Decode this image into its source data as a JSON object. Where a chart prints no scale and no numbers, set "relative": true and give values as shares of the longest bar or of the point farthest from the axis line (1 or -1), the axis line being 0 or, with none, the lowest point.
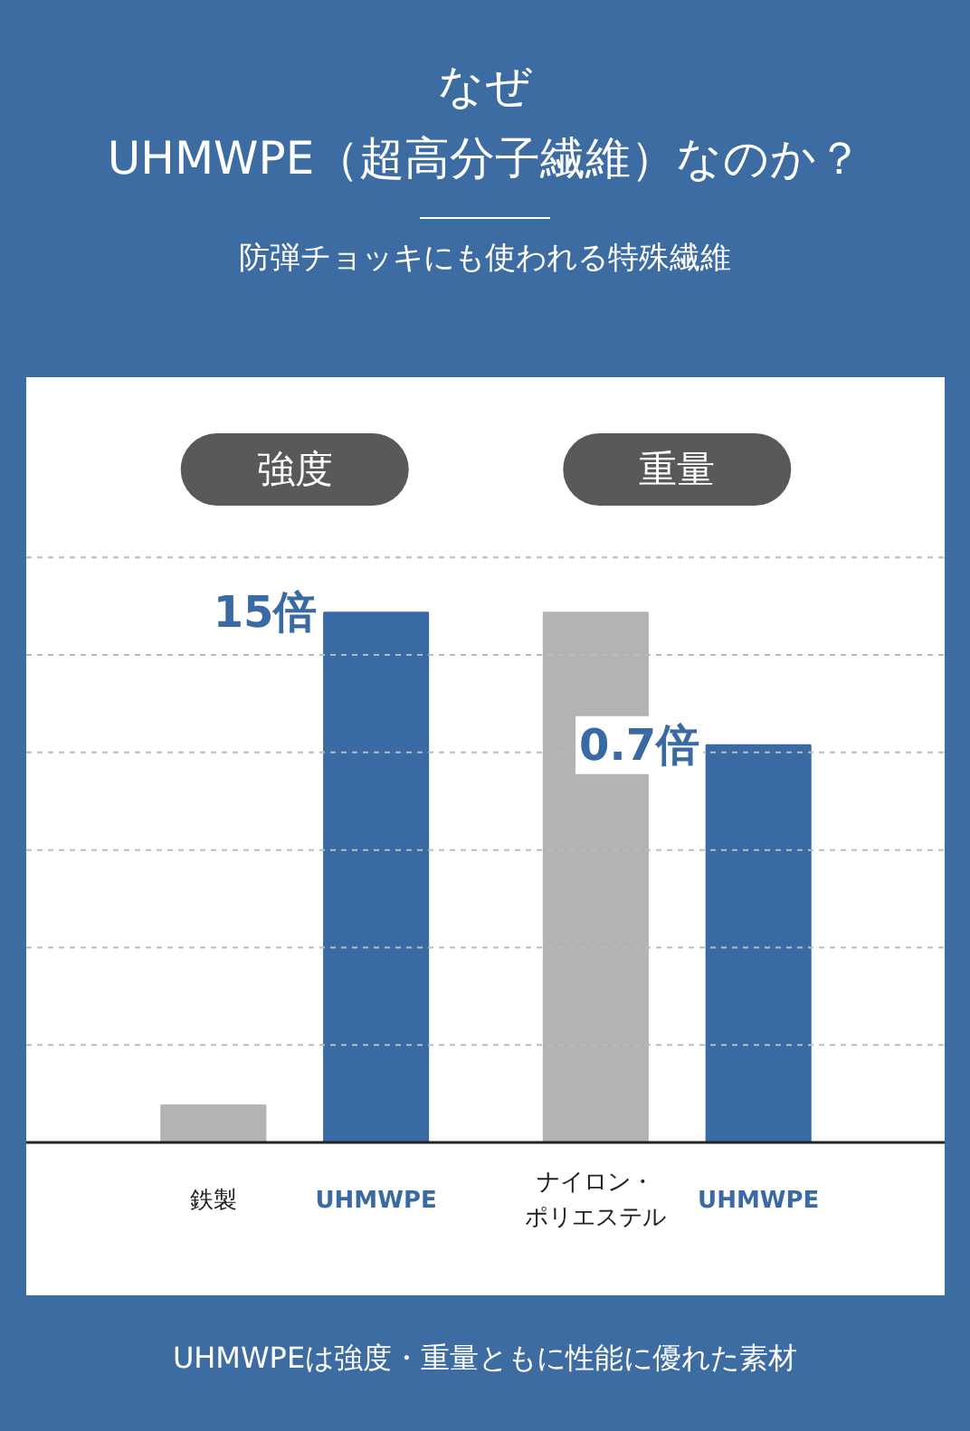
{
  "chart_data": {
    "type": "bar",
    "title": "なぜ\nUHMWPE（超高分子繊維）なのか？",
    "subtitle": "防弾チョッキにも使われる特殊繊維",
    "categories": [
      "鉄製",
      "UHMWPE",
      "ナイロン・ポリエステル",
      "UHMWPE"
    ],
    "values": [
      0.07,
      1,
      1,
      0.75
    ],
    "colors": [
      "#b3b3b3",
      "#3a6aa3",
      "#b3b3b3",
      "#3a6aa3"
    ],
    "relative": true,
    "grid": "y",
    "annotations": [
      "強度",
      "重量",
      "15倍",
      "0.7倍",
      "UHMWPEは強度・重量ともに性能に優れた素材"
    ]
  }
}
